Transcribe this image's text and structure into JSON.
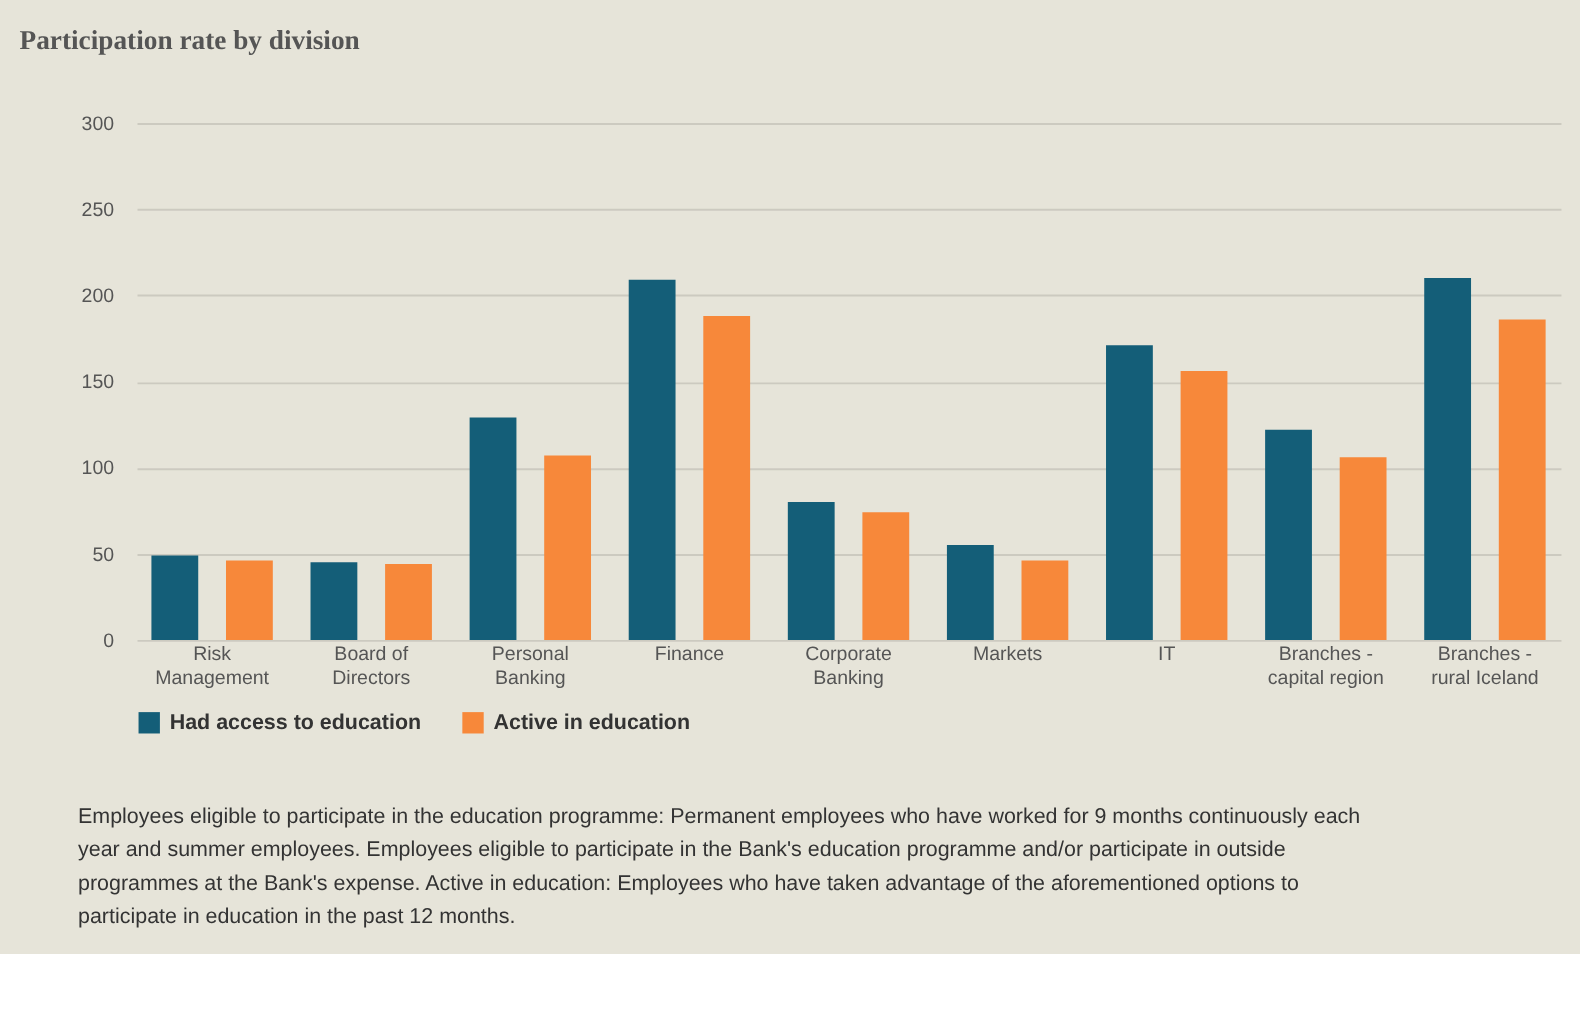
{
  "chart_data": {
    "type": "bar",
    "title": "Participation rate by division",
    "categories": [
      "Risk Management",
      "Board of Directors",
      "Personal Banking",
      "Finance",
      "Corporate Banking",
      "Markets",
      "IT",
      "Branches - capital region",
      "Branches - rural Iceland"
    ],
    "series": [
      {
        "name": "Had access to education",
        "color": "#145e78",
        "values": [
          49,
          45,
          129,
          209,
          80,
          55,
          171,
          122,
          210
        ]
      },
      {
        "name": "Active in education",
        "color": "#f7883a",
        "values": [
          46,
          44,
          107,
          188,
          74,
          46,
          156,
          106,
          186
        ]
      }
    ],
    "ylim": [
      0,
      300
    ],
    "yticks": [
      0,
      50,
      100,
      150,
      200,
      250,
      300
    ],
    "grid": "y",
    "legend": "bottom left",
    "annotations": [
      "Employees eligible to participate in the education programme: Permanent employees who have worked for 9 months continuously each year and summer employees. Employees eligible to participate in the Bank's education programme and/or participate in outside programmes at the Bank's expense. Active in education: Employees who have taken advantage of the aforementioned options to participate in education in the past 12 months."
    ]
  }
}
